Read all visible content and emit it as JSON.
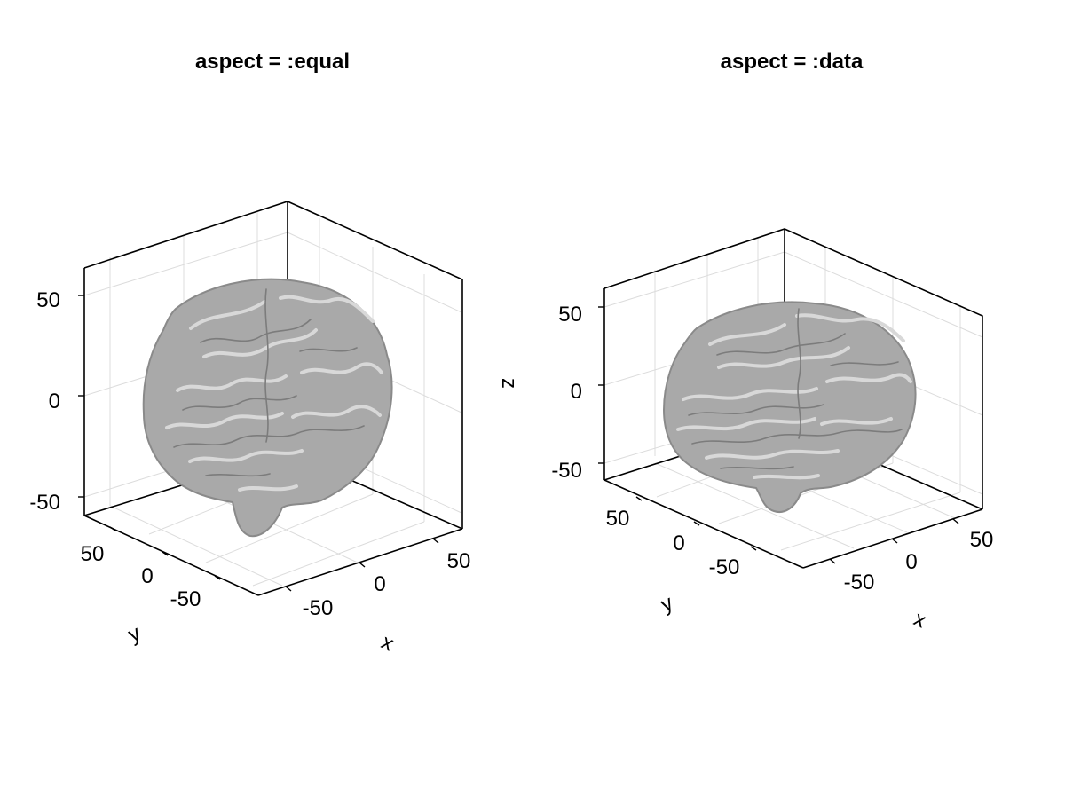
{
  "colors": {
    "background": "#ffffff",
    "axis_frame": "#000000",
    "gridline": "#dcdcdc",
    "brain_fill": "#a9a9a9",
    "brain_light": "#d6d6d6",
    "brain_shadow": "#8a8a8a"
  },
  "chart_data": [
    {
      "type": "surface-3d",
      "title": "aspect = :equal",
      "xlabel": "x",
      "ylabel": "y",
      "zlabel": "",
      "xticks": [
        "-50",
        "0",
        "50"
      ],
      "yticks": [
        "50",
        "0",
        "-50"
      ],
      "zticks": [
        "50",
        "0",
        "-50"
      ],
      "xlim": [
        -75,
        75
      ],
      "ylim": [
        -110,
        75
      ],
      "zlim": [
        -60,
        80
      ],
      "grid": true,
      "surface": "brain mesh"
    },
    {
      "type": "surface-3d",
      "title": "aspect = :data",
      "xlabel": "x",
      "ylabel": "y",
      "zlabel": "z",
      "xticks": [
        "-50",
        "0",
        "50"
      ],
      "yticks": [
        "50",
        "0",
        "-50"
      ],
      "zticks": [
        "50",
        "0",
        "-50"
      ],
      "xlim": [
        -75,
        75
      ],
      "ylim": [
        -110,
        75
      ],
      "zlim": [
        -60,
        80
      ],
      "grid": true,
      "surface": "brain mesh"
    }
  ]
}
